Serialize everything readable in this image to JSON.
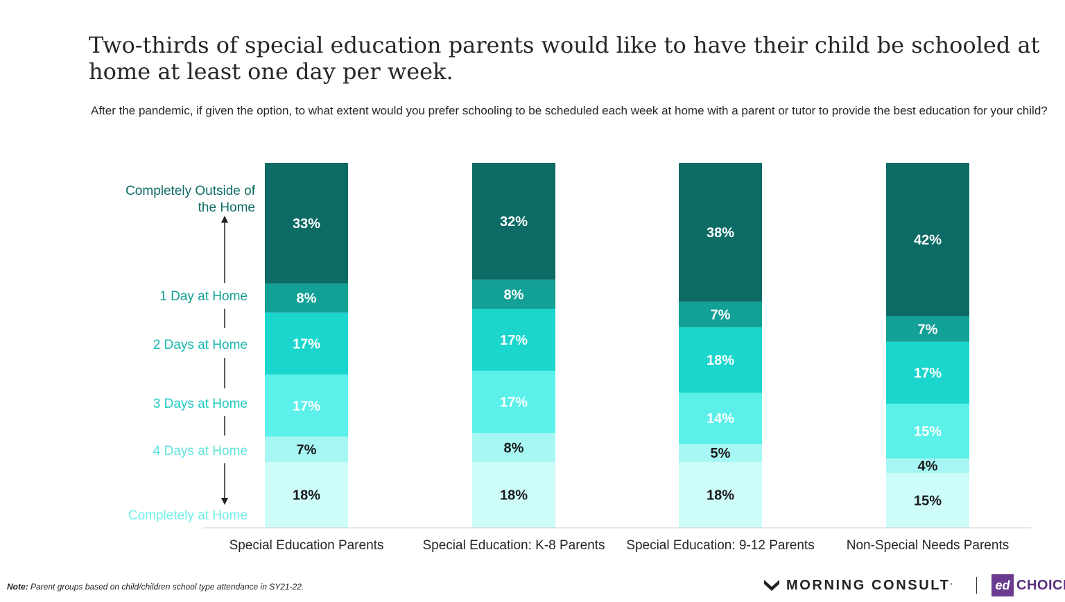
{
  "title": "Two-thirds of special education parents would like to have their child be schooled at home at least one day per week.",
  "subtitle": "After the pandemic, if given the option, to what extent would you prefer schooling to be scheduled each week at home with a parent or tutor to provide the best education for your child?",
  "footnote": {
    "label": "Note:",
    "text": " Parent groups based on child/children school type attendance in SY21-22."
  },
  "logos": {
    "morning_consult": "MORNING CONSULT",
    "edchoice_mark": "ed",
    "edchoice_word": "CHOICE"
  },
  "colors": {
    "Completely Outside of the Home": "#0c6b64",
    "1 Day at Home": "#13a096",
    "2 Days at Home": "#1ad6cd",
    "3 Days at Home": "#5bf0ea",
    "4 Days at Home": "#a6f7f3",
    "Completely at Home": "#cdfcf9"
  },
  "chart_data": {
    "type": "bar",
    "stacked": true,
    "orientation": "vertical",
    "categories": [
      "Special Education Parents",
      "Special Education: K-8 Parents",
      "Special Education: 9-12 Parents",
      "Non-Special Needs Parents"
    ],
    "series": [
      {
        "name": "Completely at Home",
        "values": [
          18,
          18,
          18,
          15
        ],
        "labels": [
          "18%",
          "18%",
          "18%",
          "15%"
        ]
      },
      {
        "name": "4 Days at Home",
        "values": [
          7,
          8,
          5,
          4
        ],
        "labels": [
          "7%",
          "8%",
          "5%",
          "4%"
        ]
      },
      {
        "name": "3 Days at Home",
        "values": [
          17,
          17,
          14,
          15
        ],
        "labels": [
          "17%",
          "17%",
          "14%",
          "15%"
        ]
      },
      {
        "name": "2 Days at Home",
        "values": [
          17,
          17,
          18,
          17
        ],
        "labels": [
          "17%",
          "17%",
          "18%",
          "17%"
        ]
      },
      {
        "name": "1 Day at Home",
        "values": [
          8,
          8,
          7,
          7
        ],
        "labels": [
          "8%",
          "8%",
          "7%",
          "7%"
        ]
      },
      {
        "name": "Completely Outside of the Home",
        "values": [
          33,
          32,
          38,
          42
        ],
        "labels": [
          "33%",
          "32%",
          "38%",
          "42%"
        ]
      }
    ],
    "legend": [
      {
        "text": [
          "Completely Outside of",
          "the Home"
        ],
        "series": "Completely Outside of the Home"
      },
      {
        "text": [
          "1 Day at Home"
        ],
        "series": "1 Day at Home"
      },
      {
        "text": [
          "2 Days at Home"
        ],
        "series": "2 Days at Home"
      },
      {
        "text": [
          "3 Days at Home"
        ],
        "series": "3 Days at Home"
      },
      {
        "text": [
          "4 Days at Home"
        ],
        "series": "4 Days at Home"
      },
      {
        "text": [
          "Completely at Home"
        ],
        "series": "Completely at Home"
      }
    ],
    "legend_placement": "left",
    "ylim": [
      0,
      100
    ],
    "grid": false
  }
}
